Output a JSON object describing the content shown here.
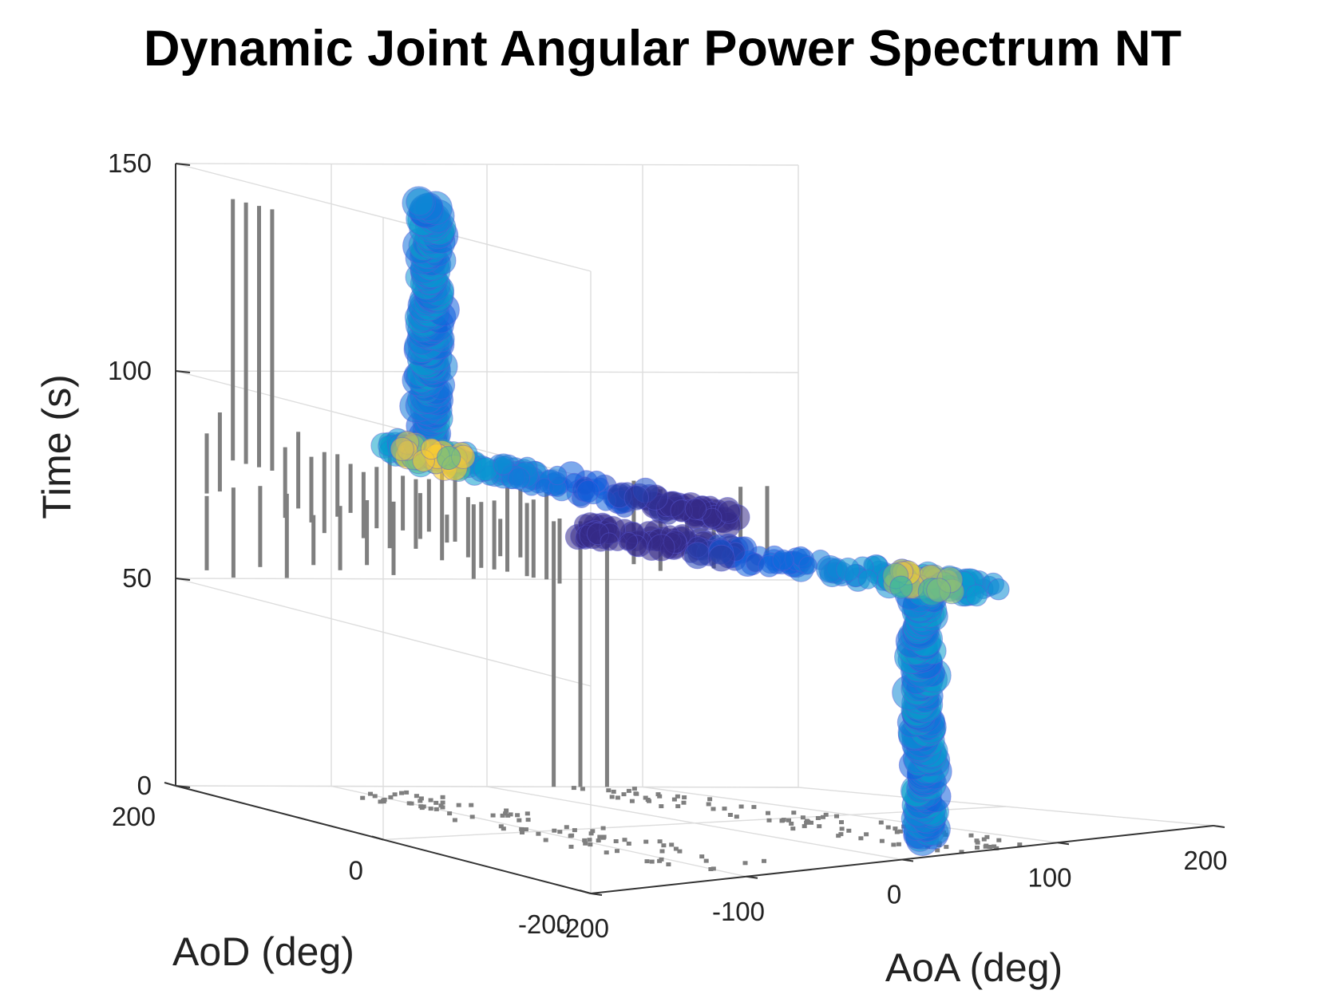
{
  "chart_data": {
    "type": "scatter",
    "title": "Dynamic Joint Angular Power Spectrum NT",
    "xlabel": "AoA (deg)",
    "ylabel": "AoD (deg)",
    "zlabel": "Time (s)",
    "x_ticks": [
      "-200",
      "-100",
      "0",
      "100",
      "200"
    ],
    "y_ticks": [
      "200",
      "0",
      "-200"
    ],
    "z_ticks": [
      "0",
      "50",
      "100",
      "150"
    ],
    "xlim": [
      -200,
      200
    ],
    "ylim": [
      -200,
      200
    ],
    "zlim": [
      0,
      150
    ],
    "grid": true,
    "colormap": "parula",
    "projection_color": "#7f7f7f",
    "clusters": [
      {
        "aoa": -90,
        "aod_range": [
          -170,
          170
        ],
        "time_range": [
          82,
          86
        ],
        "time_peak": [
          86,
          145
        ],
        "peak_aod": 120
      },
      {
        "aoa": 60,
        "aod_range": [
          -200,
          200
        ],
        "time_range": [
          60,
          64
        ],
        "time_peak": [
          0,
          60
        ],
        "peak_aod": -130
      }
    ]
  }
}
